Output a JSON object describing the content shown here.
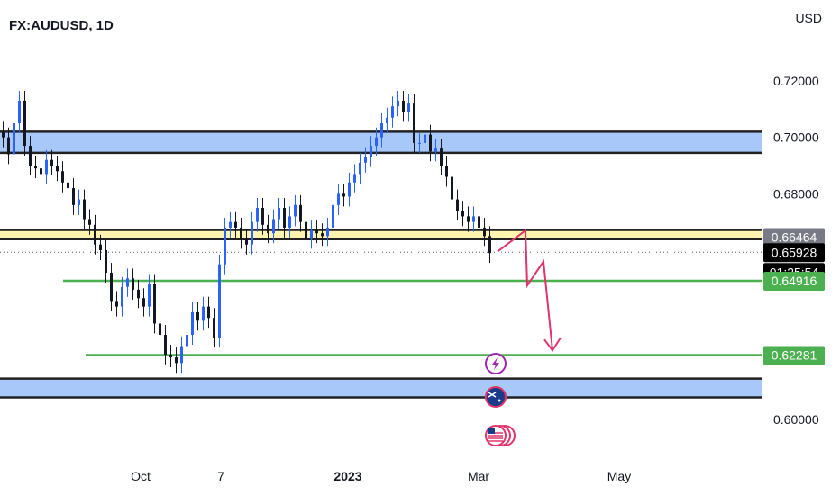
{
  "header": {
    "symbol": "FX:AUDUSD, 1D",
    "currency": "USD"
  },
  "chart_data": {
    "type": "candlestick",
    "title": "FX:AUDUSD, 1D",
    "y_axis_label": "USD",
    "yticks": [
      "0.72000",
      "0.70000",
      "0.68000",
      "0.60000"
    ],
    "xticks": [
      {
        "label": "Oct",
        "bold": false
      },
      {
        "label": "7",
        "bold": false
      },
      {
        "label": "2023",
        "bold": true
      },
      {
        "label": "Mar",
        "bold": false
      },
      {
        "label": "May",
        "bold": false
      }
    ],
    "price_labels": [
      {
        "value": "0.66464",
        "bg": "#787b86",
        "fg": "#ffffff"
      },
      {
        "value": "0.65928",
        "bg": "#000000",
        "fg": "#ffffff"
      },
      {
        "value": "01:25:54",
        "bg": "#000000",
        "fg": "#ffffff"
      },
      {
        "value": "0.64916",
        "bg": "#4caf50",
        "fg": "#ffffff"
      },
      {
        "value": "0.62281",
        "bg": "#4caf50",
        "fg": "#ffffff"
      }
    ],
    "horizontal_lines": [
      0.64916,
      0.62281
    ],
    "zones": [
      {
        "from": 0.6945,
        "to": 0.702,
        "color": "#a8c8fa"
      },
      {
        "from": 0.6639,
        "to": 0.6672,
        "color": "#fff5b0"
      },
      {
        "from": 0.6078,
        "to": 0.6145,
        "color": "#a8c8fa"
      }
    ],
    "last_price": 0.65928,
    "projection": [
      0.6595,
      0.667,
      0.6475,
      0.656,
      0.6245
    ],
    "closes": [
      0.7,
      0.694,
      0.705,
      0.713,
      0.697,
      0.69,
      0.689,
      0.687,
      0.692,
      0.69,
      0.688,
      0.684,
      0.682,
      0.676,
      0.678,
      0.671,
      0.669,
      0.662,
      0.66,
      0.652,
      0.642,
      0.64,
      0.647,
      0.65,
      0.646,
      0.643,
      0.64,
      0.648,
      0.634,
      0.63,
      0.623,
      0.622,
      0.62,
      0.626,
      0.63,
      0.638,
      0.635,
      0.64,
      0.636,
      0.629,
      0.655,
      0.668,
      0.67,
      0.668,
      0.664,
      0.662,
      0.67,
      0.675,
      0.669,
      0.666,
      0.671,
      0.675,
      0.668,
      0.672,
      0.676,
      0.67,
      0.664,
      0.667,
      0.666,
      0.665,
      0.668,
      0.676,
      0.68,
      0.679,
      0.684,
      0.687,
      0.691,
      0.693,
      0.697,
      0.7,
      0.705,
      0.707,
      0.711,
      0.713,
      0.709,
      0.712,
      0.698,
      0.698,
      0.701,
      0.695,
      0.696,
      0.69,
      0.686,
      0.678,
      0.674,
      0.672,
      0.67,
      0.672,
      0.668,
      0.665,
      0.659
    ],
    "markers": [
      "lightning-event",
      "australia-flag-event",
      "us-flag-event"
    ]
  }
}
